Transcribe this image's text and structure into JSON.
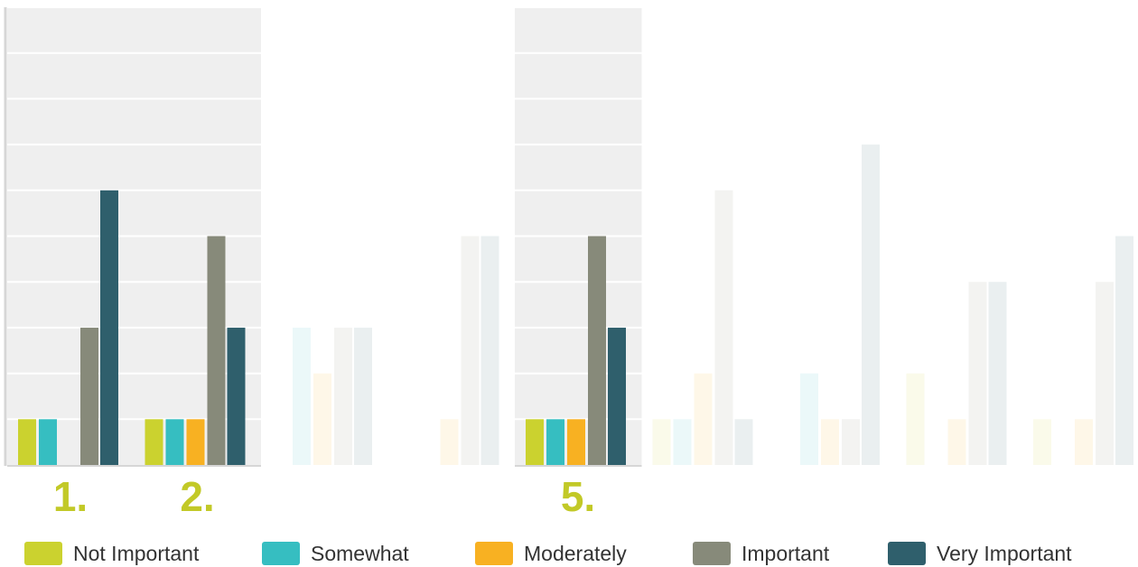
{
  "chart_data": {
    "type": "bar",
    "ylim": [
      0,
      10
    ],
    "grid": true,
    "legend_position": "bottom",
    "series": [
      {
        "name": "Not Important",
        "color": "#cbd22f"
      },
      {
        "name": "Somewhat",
        "color": "#36bec1"
      },
      {
        "name": "Moderately",
        "color": "#f8b122"
      },
      {
        "name": "Important",
        "color": "#878a7a"
      },
      {
        "name": "Very Important",
        "color": "#2f5f6c"
      }
    ],
    "groups": [
      {
        "label": "1.",
        "highlighted": true,
        "values": [
          1,
          1,
          0,
          3,
          6
        ]
      },
      {
        "label": "2.",
        "highlighted": true,
        "values": [
          1,
          1,
          1,
          5,
          3
        ]
      },
      {
        "label": "",
        "highlighted": false,
        "values": [
          0,
          3,
          2,
          3,
          3
        ]
      },
      {
        "label": "",
        "highlighted": false,
        "values": [
          0,
          0,
          1,
          5,
          5
        ]
      },
      {
        "label": "5.",
        "highlighted": true,
        "values": [
          1,
          1,
          1,
          5,
          3
        ]
      },
      {
        "label": "",
        "highlighted": false,
        "values": [
          1,
          1,
          2,
          6,
          1
        ]
      },
      {
        "label": "",
        "highlighted": false,
        "values": [
          0,
          2,
          1,
          1,
          7
        ]
      },
      {
        "label": "",
        "highlighted": false,
        "values": [
          2,
          0,
          1,
          4,
          4
        ]
      },
      {
        "label": "",
        "highlighted": false,
        "values": [
          1,
          0,
          1,
          4,
          5
        ]
      }
    ]
  },
  "styles": {
    "group_label_color": "#c2c927",
    "highlight_bg": "#efefef",
    "grid_color": "#ffffff",
    "axis_color": "#d6d6d6",
    "faded_opacity": 0.1
  }
}
